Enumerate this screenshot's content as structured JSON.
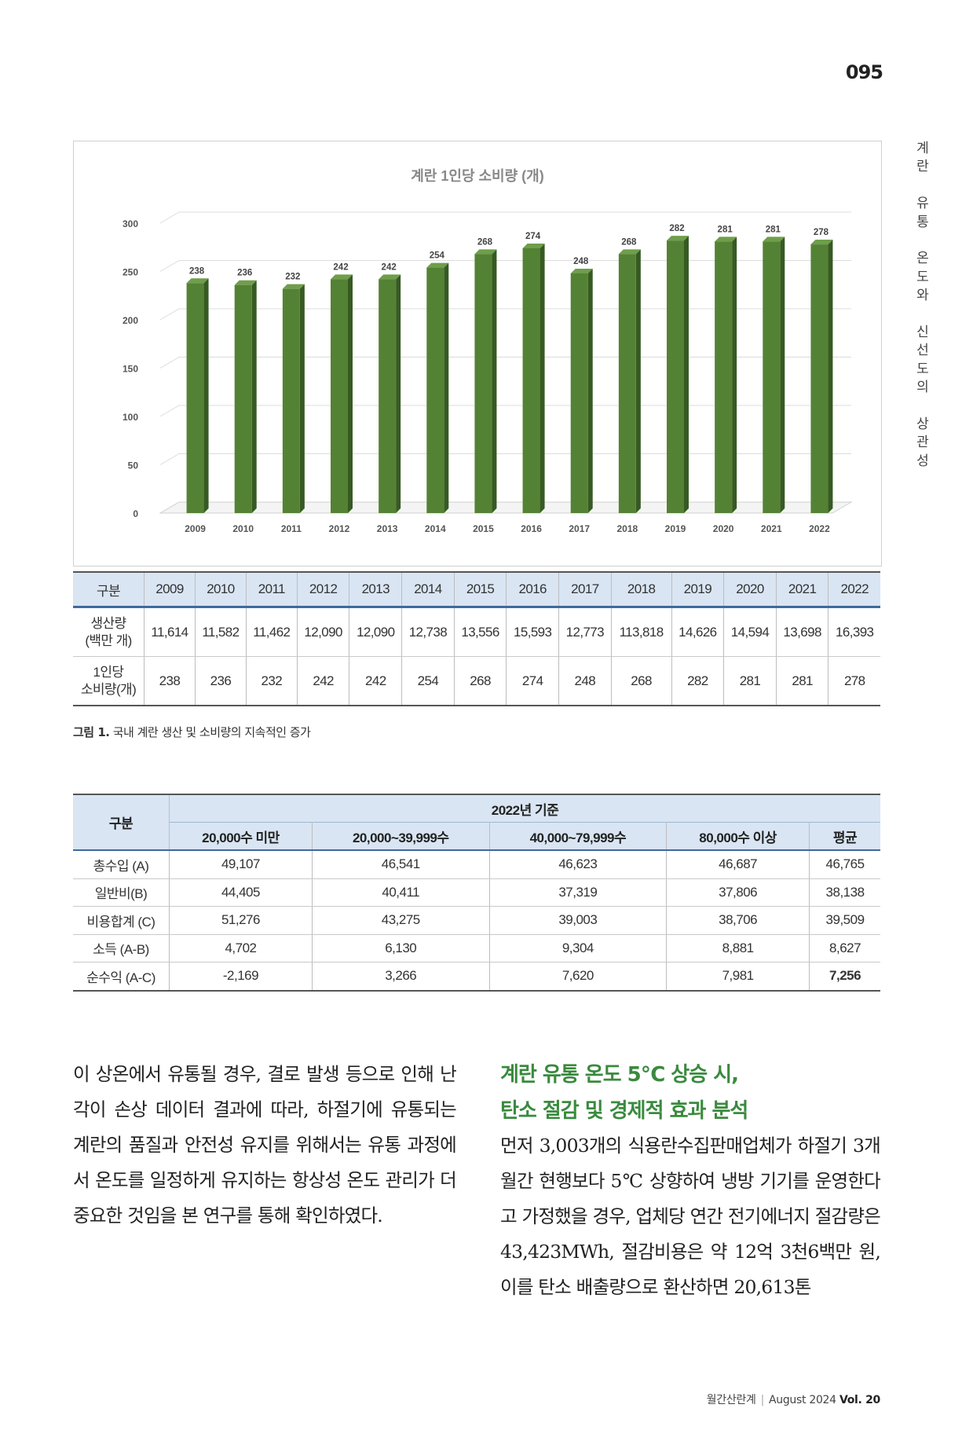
{
  "page": {
    "number": "095",
    "side_title": "계란 유통 온도와 신선도의 상관성",
    "footer": {
      "magazine": "월간산란계",
      "issue": "August 2024",
      "volume": "Vol. 20"
    }
  },
  "chart_data": {
    "type": "bar",
    "title": "계란 1인당 소비량 (개)",
    "categories": [
      "2009",
      "2010",
      "2011",
      "2012",
      "2013",
      "2014",
      "2015",
      "2016",
      "2017",
      "2018",
      "2019",
      "2020",
      "2021",
      "2022"
    ],
    "values": [
      238,
      236,
      232,
      242,
      242,
      254,
      268,
      274,
      248,
      268,
      282,
      281,
      281,
      278
    ],
    "ylim": [
      0,
      300
    ],
    "yticks": [
      0,
      50,
      100,
      150,
      200,
      250,
      300
    ],
    "bar_color": "#548235",
    "data_labels": true,
    "grid": true
  },
  "production_table": {
    "header": [
      "구분",
      "2009",
      "2010",
      "2011",
      "2012",
      "2013",
      "2014",
      "2015",
      "2016",
      "2017",
      "2018",
      "2019",
      "2020",
      "2021",
      "2022"
    ],
    "rows": [
      {
        "label_line1": "생산량",
        "label_line2": "(백만 개)",
        "values": [
          "11,614",
          "11,582",
          "11,462",
          "12,090",
          "12,090",
          "12,738",
          "13,556",
          "15,593",
          "12,773",
          "113,818",
          "14,626",
          "14,594",
          "13,698",
          "16,393"
        ]
      },
      {
        "label_line1": "1인당",
        "label_line2": "소비량(개)",
        "values": [
          "238",
          "236",
          "232",
          "242",
          "242",
          "254",
          "268",
          "274",
          "248",
          "268",
          "282",
          "281",
          "281",
          "278"
        ]
      }
    ]
  },
  "caption": {
    "prefix": "그림 1.",
    "text": " 국내 계란 생산 및 소비량의 지속적인 증가"
  },
  "income_table": {
    "corner": "구분",
    "group_header": "2022년 기준",
    "columns": [
      "20,000수 미만",
      "20,000~39,999수",
      "40,000~79,999수",
      "80,000수 이상",
      "평균"
    ],
    "rows": [
      {
        "label": "총수입 (A)",
        "values": [
          "49,107",
          "46,541",
          "46,623",
          "46,687",
          "46,765"
        ]
      },
      {
        "label": "일반비(B)",
        "values": [
          "44,405",
          "40,411",
          "37,319",
          "37,806",
          "38,138"
        ]
      },
      {
        "label": "비용합계 (C)",
        "values": [
          "51,276",
          "43,275",
          "39,003",
          "38,706",
          "39,509"
        ]
      },
      {
        "label": "소득 (A-B)",
        "values": [
          "4,702",
          "6,130",
          "9,304",
          "8,881",
          "8,627"
        ]
      },
      {
        "label": "순수익 (A-C)",
        "values": [
          "-2,169",
          "3,266",
          "7,620",
          "7,981",
          "7,256"
        ]
      }
    ]
  },
  "left_column": {
    "paragraph": "이 상온에서 유통될 경우, 결로 발생 등으로 인해 난각이 손상 데이터 결과에 따라, 하절기에 유통되는 계란의 품질과 안전성 유지를 위해서는 유통 과정에서 온도를 일정하게 유지하는 항상성 온도 관리가 더 중요한 것임을 본 연구를 통해 확인하였다."
  },
  "right_column": {
    "heading_line1": "계란 유통 온도 5℃ 상승 시,",
    "heading_line2": "탄소 절감 및 경제적 효과 분석",
    "paragraph": "먼저 3,003개의 식용란수집판매업체가 하절기 3개월간 현행보다 5℃ 상향하여 냉방 기기를 운영한다고 가정했을 경우, 업체당 연간 전기에너지 절감량은 43,423MWh, 절감비용은 약 12억 3천6백만 원, 이를 탄소 배출량으로 환산하면 20,613톤"
  }
}
